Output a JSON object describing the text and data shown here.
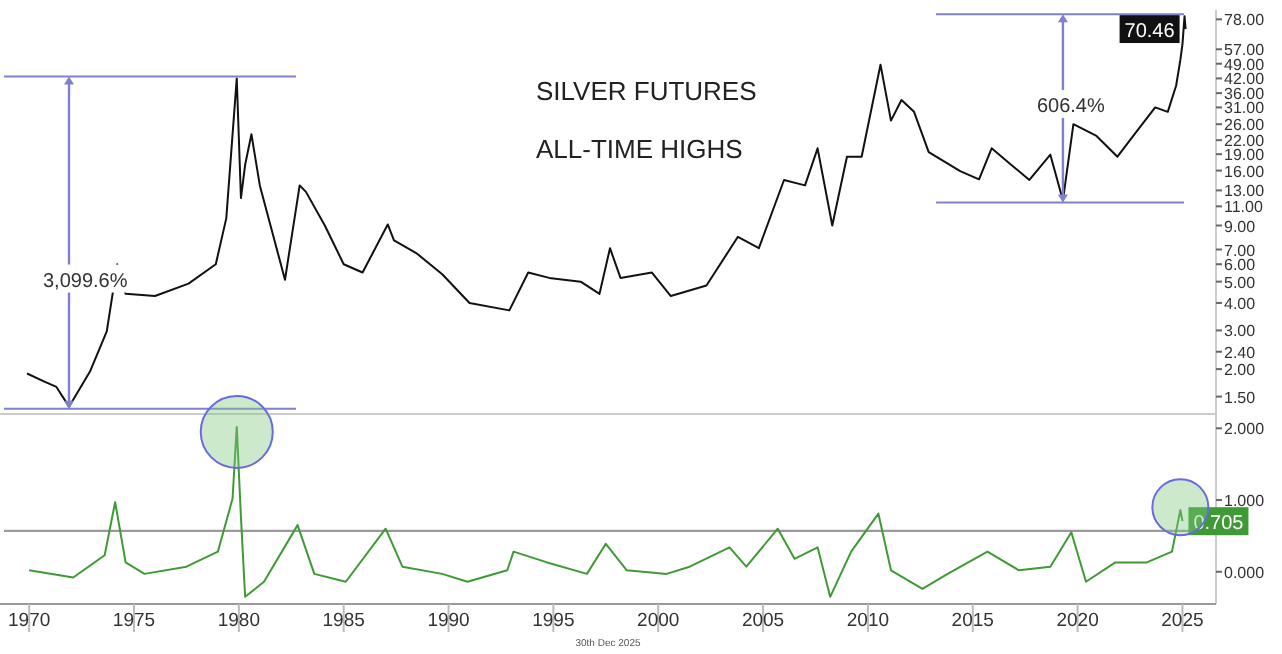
{
  "chart_data": [
    {
      "type": "line",
      "title": "SILVER FUTURES",
      "subtitle": "ALL-TIME HIGHS",
      "log": true,
      "xlim": [
        1968.8,
        2026.6
      ],
      "ylim": [
        1.25,
        86
      ],
      "tick_labels": "y",
      "yticks": [
        {
          "value": 78,
          "label": "78.00"
        },
        {
          "value": 57,
          "label": "57.00"
        },
        {
          "value": 49,
          "label": "49.00"
        },
        {
          "value": 42,
          "label": "42.00"
        },
        {
          "value": 36,
          "label": "36.00"
        },
        {
          "value": 31,
          "label": "31.00"
        },
        {
          "value": 26,
          "label": "26.00"
        },
        {
          "value": 22,
          "label": "22.00"
        },
        {
          "value": 19,
          "label": "19.00"
        },
        {
          "value": 16,
          "label": "16.00"
        },
        {
          "value": 13,
          "label": "13.00"
        },
        {
          "value": 11,
          "label": "11.00"
        },
        {
          "value": 9,
          "label": "9.00"
        },
        {
          "value": 7,
          "label": "7.00"
        },
        {
          "value": 6,
          "label": "6.00"
        },
        {
          "value": 5,
          "label": "5.00"
        },
        {
          "value": 4,
          "label": "4.00"
        },
        {
          "value": 3,
          "label": "3.00"
        },
        {
          "value": 2.4,
          "label": "2.40"
        },
        {
          "value": 2,
          "label": "2.00"
        },
        {
          "value": 1.5,
          "label": "1.50"
        }
      ],
      "annotations": [
        "3,099.6%",
        "606.4%"
      ],
      "series": [
        {
          "color": "#111111",
          "x": [
            1969.9,
            1970.7,
            1971.3,
            1971.9,
            1972.9,
            1973.7,
            1974.2,
            1974.6,
            1976.0,
            1977.6,
            1978.9,
            1979.4,
            1979.9,
            1980.1,
            1980.3,
            1980.6,
            1981.0,
            1982.2,
            1982.9,
            1983.2,
            1984.1,
            1985.0,
            1985.9,
            1987.1,
            1987.4,
            1988.5,
            1989.7,
            1991.0,
            1992.9,
            1993.8,
            1994.8,
            1996.3,
            1997.2,
            1997.7,
            1998.2,
            1999.7,
            2000.6,
            2002.3,
            2003.8,
            2004.8,
            2006.0,
            2007.0,
            2007.6,
            2008.3,
            2009.0,
            2009.7,
            2010.6,
            2011.1,
            2011.6,
            2012.2,
            2012.9,
            2014.4,
            2015.3,
            2015.9,
            2016.8,
            2017.7,
            2018.7,
            2019.3,
            2019.8,
            2020.9,
            2021.9,
            2022.8,
            2023.7,
            2024.3,
            2024.7,
            2024.9,
            2025.0,
            2025.1,
            2025.15
          ],
          "values": [
            1.91,
            1.76,
            1.66,
            1.35,
            1.95,
            2.97,
            6.0,
            4.4,
            4.3,
            4.9,
            6.0,
            9.7,
            42,
            12,
            17,
            23.4,
            13.7,
            5.1,
            13.7,
            12.8,
            9.0,
            6.0,
            5.5,
            9.1,
            7.7,
            6.7,
            5.4,
            4.0,
            3.7,
            5.5,
            5.2,
            5.0,
            4.4,
            7.1,
            5.2,
            5.5,
            4.3,
            4.8,
            8.0,
            7.1,
            14.5,
            13.7,
            20.2,
            9.0,
            18.5,
            18.5,
            48.5,
            27,
            33.5,
            29.6,
            19.4,
            15.9,
            14.6,
            20.2,
            17.1,
            14.5,
            18.9,
            11.7,
            26,
            23,
            18.5,
            24,
            31,
            29.6,
            39,
            51,
            60,
            80.5,
            70.46
          ],
          "value_labels": [
            null,
            null,
            null,
            null,
            null,
            null,
            null,
            null,
            null,
            null,
            null,
            null,
            null,
            null,
            null,
            null,
            null,
            null,
            null,
            null,
            null,
            null,
            null,
            null,
            null,
            null,
            null,
            null,
            null,
            null,
            null,
            null,
            null,
            null,
            null,
            null,
            null,
            null,
            null,
            null,
            null,
            null,
            null,
            null,
            null,
            null,
            null,
            null,
            null,
            null,
            null,
            null,
            null,
            null,
            null,
            null,
            null,
            null,
            null,
            null,
            null,
            null,
            null,
            null,
            null,
            null,
            null,
            null,
            "70.46"
          ]
        }
      ]
    },
    {
      "type": "line",
      "xlim": [
        1968.8,
        2026.6
      ],
      "ylim": [
        -0.45,
        2.2
      ],
      "xticks": [
        1970,
        1975,
        1980,
        1985,
        1990,
        1995,
        2000,
        2005,
        2010,
        2015,
        2020,
        2025
      ],
      "yticks": [
        {
          "value": 2,
          "label": "2.000"
        },
        {
          "value": 1,
          "label": "1.000"
        },
        {
          "value": 0,
          "label": "0.000"
        }
      ],
      "ref_lines": [
        {
          "axis": "y",
          "value": 0.57,
          "color": "#9a9a9a"
        }
      ],
      "annotations": [
        "30th Dec 2025"
      ],
      "series": [
        {
          "color": "#3f9a35",
          "x": [
            1970.0,
            1972.1,
            1973.6,
            1974.1,
            1974.6,
            1975.5,
            1977.5,
            1979.0,
            1979.7,
            1979.9,
            1980.1,
            1980.3,
            1981.2,
            1982.8,
            1983.6,
            1985.1,
            1987.0,
            1987.8,
            1989.7,
            1990.9,
            1992.8,
            1993.1,
            1994.7,
            1996.6,
            1997.5,
            1998.5,
            2000.4,
            2001.5,
            2003.4,
            2004.2,
            2005.7,
            2006.5,
            2007.6,
            2008.2,
            2009.2,
            2010.5,
            2011.1,
            2012.6,
            2013.8,
            2015.7,
            2017.2,
            2018.7,
            2019.7,
            2020.4,
            2021.8,
            2023.3,
            2024.5,
            2024.9,
            2025.0
          ],
          "values": [
            0.02,
            -0.08,
            0.23,
            0.97,
            0.13,
            -0.03,
            0.07,
            0.28,
            1.02,
            2.02,
            0.76,
            -0.35,
            -0.14,
            0.65,
            -0.03,
            -0.14,
            0.6,
            0.07,
            -0.03,
            -0.14,
            0.02,
            0.28,
            0.13,
            -0.03,
            0.39,
            0.02,
            -0.03,
            0.07,
            0.34,
            0.07,
            0.6,
            0.18,
            0.34,
            -0.35,
            0.28,
            0.81,
            0.02,
            -0.24,
            -0.03,
            0.28,
            0.02,
            0.07,
            0.55,
            -0.14,
            0.13,
            0.13,
            0.28,
            0.86,
            0.705
          ],
          "value_labels": [
            null,
            null,
            null,
            null,
            null,
            null,
            null,
            null,
            null,
            null,
            null,
            null,
            null,
            null,
            null,
            null,
            null,
            null,
            null,
            null,
            null,
            null,
            null,
            null,
            null,
            null,
            null,
            null,
            null,
            null,
            null,
            null,
            null,
            null,
            null,
            null,
            null,
            null,
            null,
            null,
            null,
            null,
            null,
            null,
            null,
            null,
            null,
            null,
            "0.705"
          ]
        }
      ]
    }
  ]
}
